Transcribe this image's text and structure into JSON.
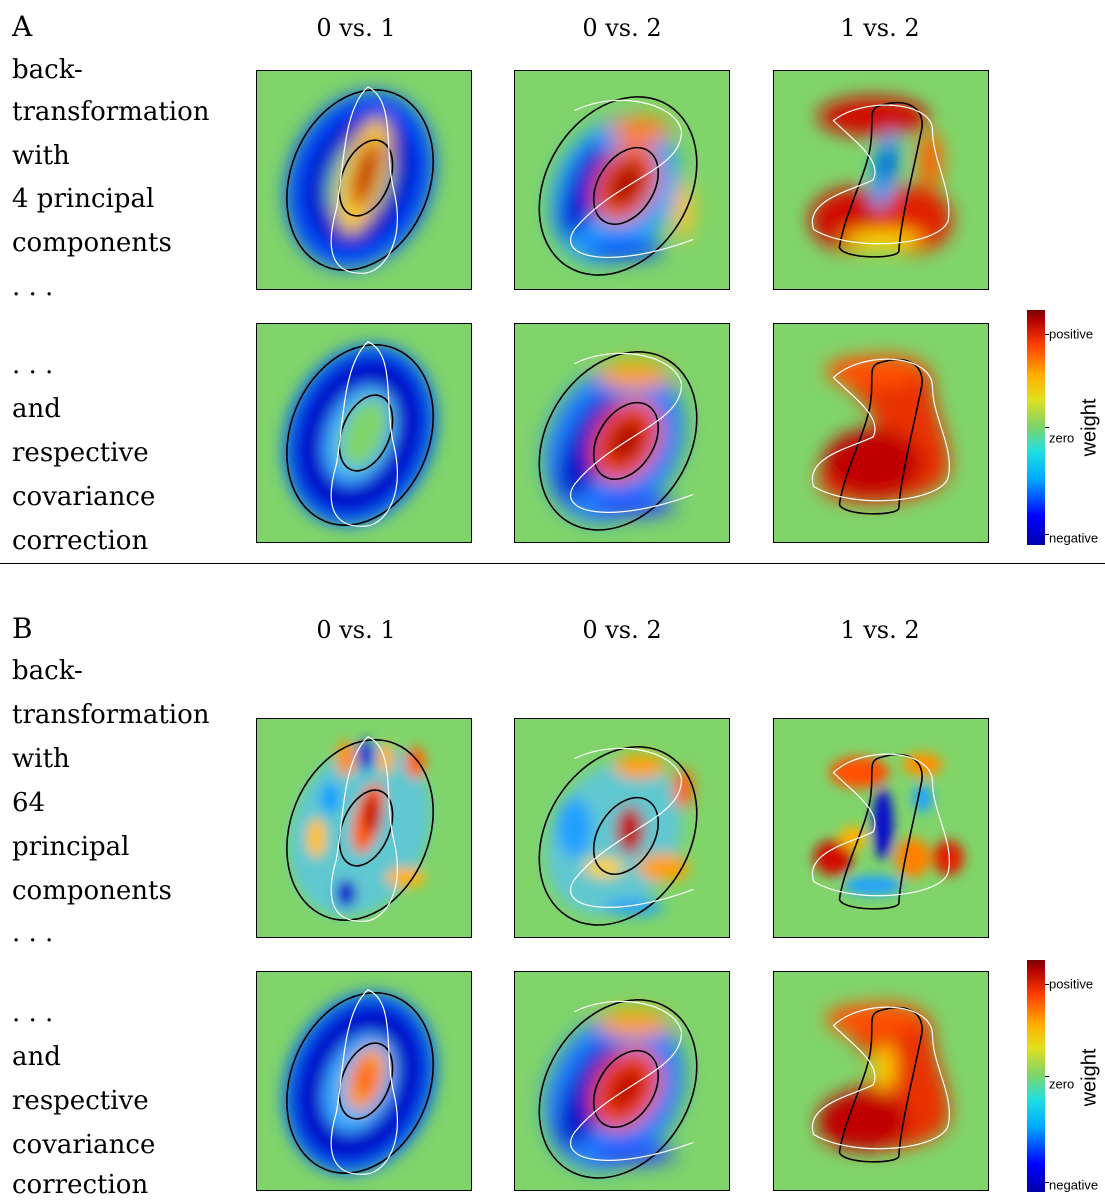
{
  "panelA": {
    "letter": "A",
    "columns": [
      "0 vs. 1",
      "0 vs. 2",
      "1 vs. 2"
    ],
    "row1_lines": [
      "back-",
      "transformation",
      "with",
      "4 principal",
      "components",
      ". . ."
    ],
    "row2_lines": [
      ". . .",
      "and",
      "respective",
      "covariance",
      "correction"
    ]
  },
  "panelB": {
    "letter": "B",
    "columns": [
      "0 vs. 1",
      "0 vs. 2",
      "1 vs. 2"
    ],
    "row1_lines": [
      "back-",
      "transformation",
      "with",
      "64",
      "principal",
      "components",
      ". . ."
    ],
    "row2_lines": [
      ". . .",
      "and",
      "respective",
      "covariance",
      "correction"
    ]
  },
  "colorbar": {
    "title": "weight",
    "positive": "positive",
    "zero": "zero",
    "negative": "negative"
  },
  "colors": {
    "background": "#80d46a",
    "positive": "#b00000",
    "negative": "#0000c8",
    "contour_dark": "#000000",
    "contour_light": "#ffffff"
  }
}
